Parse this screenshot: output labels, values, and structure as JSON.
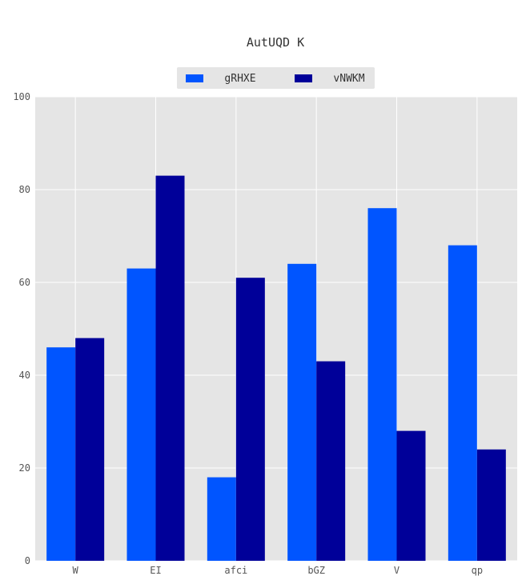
{
  "chart_data": {
    "type": "bar",
    "title": "AutUQD K",
    "xlabel": "",
    "ylabel": "",
    "categories": [
      "W",
      "EI",
      "afci",
      "bGZ",
      "V",
      "qp"
    ],
    "series": [
      {
        "name": "gRHXE",
        "values": [
          46,
          63,
          18,
          64,
          76,
          68
        ],
        "color": "#0055ff"
      },
      {
        "name": "vNWKM",
        "values": [
          48,
          83,
          61,
          43,
          28,
          24
        ],
        "color": "#000099"
      }
    ],
    "ylim": [
      0,
      100
    ],
    "yticks": [
      0,
      20,
      40,
      60,
      80,
      100
    ],
    "grid": true,
    "legend_position": "top-center",
    "background": "#e5e5e5",
    "grid_color": "#ffffff"
  }
}
